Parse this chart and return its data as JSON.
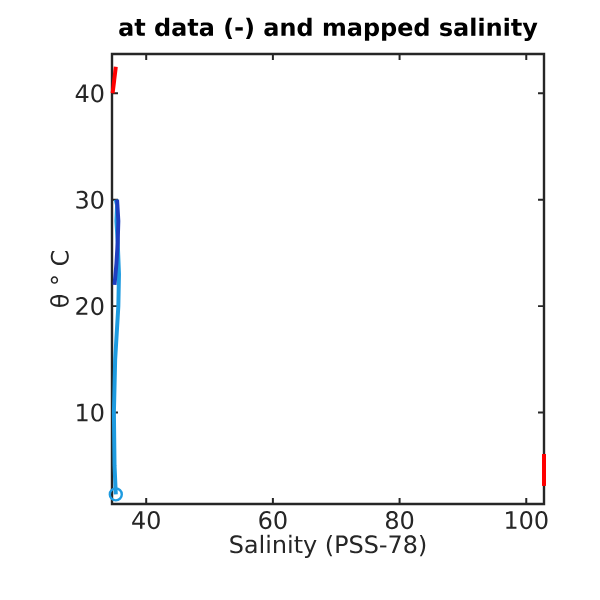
{
  "chart_data": {
    "type": "line",
    "title": "at data (-) and mapped salinity",
    "xlabel": "Salinity (PSS-78)",
    "ylabel": "θ ° C",
    "xlim": [
      34.6,
      102.8
    ],
    "ylim": [
      1.4,
      43.7
    ],
    "xticks": [
      40,
      60,
      80,
      100
    ],
    "yticks": [
      10,
      20,
      30,
      40
    ],
    "grid": false,
    "series": [
      {
        "color": "#1e9be0",
        "x": [
          35.2,
          35.0,
          34.9,
          35.1,
          35.4,
          35.6,
          35.7,
          35.5,
          35.3,
          35.4,
          35.2
        ],
        "values": [
          2.3,
          5,
          10,
          15,
          18,
          20,
          23,
          26,
          28,
          29.5,
          30
        ]
      },
      {
        "color": "#1f3fbf",
        "x": [
          35.0,
          35.3,
          35.5,
          35.6,
          35.4
        ],
        "values": [
          22,
          24,
          26,
          28,
          30
        ]
      },
      {
        "color": "#ff0000",
        "x": [
          34.7,
          35.2
        ],
        "values": [
          40,
          42.5
        ]
      },
      {
        "color": "#ff0000",
        "x": [
          102.8,
          102.8
        ],
        "values": [
          3.1,
          6.1
        ]
      },
      {
        "type": "scatter",
        "marker": "circle",
        "color": "#1e9be0",
        "x": [
          35.2
        ],
        "values": [
          2.3
        ]
      }
    ]
  }
}
